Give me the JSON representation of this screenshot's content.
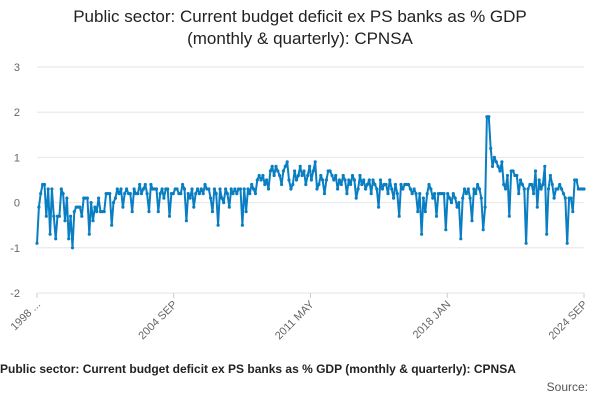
{
  "chart_data": {
    "type": "line",
    "title_line1": "Public sector: Current budget deficit ex PS banks as % GDP",
    "title_line2": "(monthly & quarterly): CPNSA",
    "xlabel": "",
    "ylabel": "",
    "ylim": [
      -2,
      3
    ],
    "yticks": [
      "3",
      "2",
      "1",
      "0",
      "-1",
      "-2"
    ],
    "xlim": [
      "1998 Q1",
      "2024 SEP"
    ],
    "xticks": [
      "1998 ...",
      "2004 SEP",
      "2011 MAY",
      "2018 JAN",
      "2024 SEP"
    ],
    "grid": true,
    "legend": "none",
    "color": "#0a7ec2",
    "series": [
      {
        "values": [
          -0.9,
          -0.1,
          0.2,
          0.4,
          0.4,
          -0.3,
          0.3,
          -0.7,
          0.3,
          -0.3,
          -0.8,
          -0.3,
          -0.3,
          0.3,
          0.2,
          -0.4,
          0.1,
          -0.8,
          -0.3,
          -1.0,
          -0.2,
          -0.1,
          -0.1,
          -0.1,
          -0.3,
          0.1,
          0.1,
          0.1,
          -0.7,
          0.0,
          -0.4,
          -0.1,
          -0.2,
          0.1,
          -0.2,
          -0.2,
          -0.2,
          0.2,
          0.2,
          0.2,
          -0.5,
          0.0,
          0.1,
          0.3,
          0.2,
          0.3,
          -0.1,
          0.2,
          0.3,
          0.2,
          0.2,
          -0.2,
          0.3,
          0.2,
          0.2,
          0.4,
          0.2,
          0.3,
          0.4,
          0.2,
          -0.2,
          0.4,
          0.3,
          0.3,
          0.3,
          -0.2,
          0.2,
          0.3,
          0.1,
          0.3,
          0.3,
          -0.3,
          0.2,
          0.2,
          0.3,
          0.3,
          0.2,
          0.2,
          0.4,
          0.3,
          -0.4,
          0.2,
          0.1,
          0.3,
          -0.1,
          0.2,
          0.3,
          0.2,
          0.3,
          0.2,
          0.4,
          0.3,
          0.3,
          0.1,
          -0.2,
          0.3,
          0.2,
          -0.5,
          0.3,
          0.1,
          0.0,
          0.3,
          0.2,
          -0.1,
          0.3,
          0.2,
          0.3,
          0.2,
          0.3,
          0.3,
          -0.5,
          0.3,
          -0.2,
          0.3,
          0.2,
          0.4,
          0.3,
          0.2,
          0.5,
          0.6,
          0.5,
          0.6,
          0.4,
          0.5,
          0.3,
          0.7,
          0.8,
          0.6,
          0.8,
          0.7,
          0.6,
          0.4,
          0.7,
          0.8,
          0.9,
          0.5,
          0.3,
          0.4,
          0.7,
          0.5,
          0.6,
          0.8,
          0.6,
          0.7,
          0.4,
          0.6,
          0.8,
          0.5,
          0.7,
          0.9,
          0.3,
          0.4,
          0.6,
          0.5,
          0.2,
          0.5,
          0.7,
          0.7,
          0.6,
          0.5,
          0.6,
          0.3,
          0.5,
          0.4,
          0.6,
          0.5,
          0.2,
          0.5,
          0.4,
          0.6,
          0.5,
          0.1,
          0.3,
          0.6,
          0.4,
          0.5,
          0.3,
          0.4,
          0.5,
          0.2,
          0.5,
          0.4,
          0.3,
          -0.1,
          0.5,
          0.3,
          0.4,
          0.4,
          0.2,
          0.5,
          0.3,
          0.1,
          0.4,
          0.2,
          -0.3,
          0.4,
          0.3,
          0.4,
          0.4,
          0.4,
          0.3,
          0.2,
          0.3,
          0.2,
          -0.2,
          0.2,
          -0.7,
          0.1,
          -0.2,
          0.2,
          0.4,
          0.3,
          0.1,
          0.2,
          -0.3,
          0.2,
          0.2,
          0.2,
          0.2,
          -0.6,
          0.2,
          0.1,
          0.0,
          0.2,
          0.1,
          -0.1,
          0.0,
          -0.8,
          0.1,
          0.3,
          0.2,
          0.3,
          0.1,
          -0.4,
          0.3,
          0.2,
          0.4,
          0.3,
          0.1,
          -0.6,
          -0.1,
          1.9,
          1.9,
          1.2,
          0.8,
          1.0,
          0.9,
          0.8,
          0.7,
          0.9,
          0.4,
          0.3,
          0.6,
          -0.3,
          0.7,
          0.7,
          0.6,
          0.6,
          0.2,
          0.5,
          0.4,
          0.3,
          -0.9,
          0.3,
          0.4,
          0.4,
          0.2,
          0.7,
          -0.1,
          0.5,
          0.3,
          0.4,
          0.8,
          -0.7,
          0.3,
          0.6,
          0.4,
          0.1,
          0.3,
          0.3,
          0.4,
          0.3,
          0.2,
          0.1,
          -0.9,
          0.1,
          0.1,
          -0.2,
          0.5,
          0.5,
          0.3,
          0.3,
          0.3,
          0.3
        ]
      }
    ]
  },
  "footer": {
    "title": "Public sector: Current budget deficit ex PS banks as % GDP (monthly & quarterly): CPNSA",
    "source": "Source:"
  }
}
